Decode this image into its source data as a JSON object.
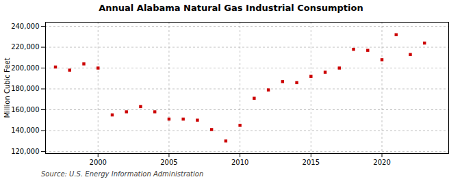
{
  "chart_data": {
    "type": "scatter",
    "title": "Annual Alabama Natural Gas Industrial Consumption",
    "ylabel": "Million Cubic Feet",
    "annotations": [
      "Source: U.S. Energy Information Administration"
    ],
    "x": [
      1997,
      1998,
      1999,
      2000,
      2001,
      2002,
      2003,
      2004,
      2005,
      2006,
      2007,
      2008,
      2009,
      2010,
      2011,
      2012,
      2013,
      2014,
      2015,
      2016,
      2017,
      2018,
      2019,
      2020,
      2021,
      2022,
      2023
    ],
    "values": [
      201000,
      198000,
      204000,
      200000,
      155000,
      158000,
      163000,
      158000,
      151000,
      151000,
      150000,
      141000,
      130000,
      145000,
      171000,
      179000,
      187000,
      186000,
      192000,
      196000,
      200000,
      218000,
      217000,
      208000,
      232000,
      213000,
      224000
    ],
    "color": "#cc0000",
    "marker": "square",
    "xlim": [
      1996.3,
      2024.7
    ],
    "xticks": [
      2000,
      2005,
      2010,
      2015,
      2020
    ],
    "ylim": [
      118000,
      244000
    ],
    "yticks": [
      {
        "value": 120000,
        "label": "120,000"
      },
      {
        "value": 140000,
        "label": "140,000"
      },
      {
        "value": 160000,
        "label": "160,000"
      },
      {
        "value": 180000,
        "label": "180,000"
      },
      {
        "value": 200000,
        "label": "200,000"
      },
      {
        "value": 220000,
        "label": "220,000"
      },
      {
        "value": 240000,
        "label": "240,000"
      }
    ],
    "grid": true
  }
}
